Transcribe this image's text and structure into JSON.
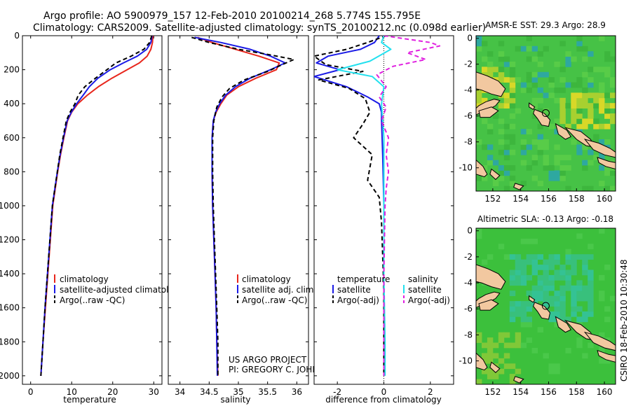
{
  "header": {
    "line1": "Argo profile: AO 5900979_157 12-Feb-2010 20100214_268 5.774S 155.795E",
    "line2": "Climatology: CARS2009. Satellite-adjusted climatology: synTS_20100212.nc (0.098d earlier)"
  },
  "side_label": "CSIRO 18-Feb-2010 10:30:48",
  "colors": {
    "climatology": "#e8261c",
    "satellite": "#1a1ae6",
    "argo": "#000000",
    "cyan": "#22e0ee",
    "magenta": "#e020e0",
    "land": "#f2c8a0",
    "sea_sst": "#46c246",
    "sea_sla": "#3cc03c"
  },
  "chart_data": [
    {
      "id": "temperature",
      "type": "line",
      "xlabel": "temperature",
      "ylabel": "",
      "xlim": [
        -2,
        32
      ],
      "ylim": [
        2050,
        0
      ],
      "xticks": [
        0,
        10,
        20,
        30
      ],
      "yticks": [
        0,
        200,
        400,
        600,
        800,
        1000,
        1200,
        1400,
        1600,
        1800,
        2000
      ],
      "legend": [
        "climatology",
        "satellite-adjusted climatology",
        "Argo(..raw -QC)"
      ],
      "series": [
        {
          "name": "climatology",
          "style": "solid",
          "color_key": "climatology",
          "points": [
            [
              29.8,
              0
            ],
            [
              29.7,
              40
            ],
            [
              29.3,
              80
            ],
            [
              28.4,
              120
            ],
            [
              26.5,
              160
            ],
            [
              23.5,
              200
            ],
            [
              19.8,
              250
            ],
            [
              16.5,
              300
            ],
            [
              13.8,
              350
            ],
            [
              11.5,
              400
            ],
            [
              10.0,
              450
            ],
            [
              9.0,
              500
            ],
            [
              8.1,
              600
            ],
            [
              7.3,
              700
            ],
            [
              6.6,
              800
            ],
            [
              6.0,
              900
            ],
            [
              5.4,
              1000
            ],
            [
              4.8,
              1200
            ],
            [
              4.2,
              1400
            ],
            [
              3.6,
              1600
            ],
            [
              3.0,
              1800
            ],
            [
              2.5,
              2000
            ]
          ]
        },
        {
          "name": "satellite-adjusted climatology",
          "style": "solid",
          "color_key": "satellite",
          "points": [
            [
              29.6,
              0
            ],
            [
              29.3,
              40
            ],
            [
              28.3,
              80
            ],
            [
              26.0,
              120
            ],
            [
              22.6,
              160
            ],
            [
              19.4,
              200
            ],
            [
              16.4,
              250
            ],
            [
              14.3,
              300
            ],
            [
              12.8,
              350
            ],
            [
              11.2,
              400
            ],
            [
              9.9,
              450
            ],
            [
              8.9,
              500
            ],
            [
              8.0,
              600
            ],
            [
              7.2,
              700
            ],
            [
              6.5,
              800
            ],
            [
              5.9,
              900
            ],
            [
              5.3,
              1000
            ],
            [
              4.7,
              1200
            ],
            [
              4.1,
              1400
            ],
            [
              3.5,
              1600
            ],
            [
              3.0,
              1800
            ],
            [
              2.5,
              2000
            ]
          ]
        },
        {
          "name": "Argo(..raw -QC)",
          "style": "dashed",
          "color_key": "argo",
          "points": [
            [
              29.5,
              0
            ],
            [
              29.0,
              40
            ],
            [
              27.6,
              80
            ],
            [
              24.5,
              120
            ],
            [
              20.8,
              160
            ],
            [
              18.6,
              200
            ],
            [
              15.8,
              250
            ],
            [
              13.2,
              300
            ],
            [
              11.6,
              350
            ],
            [
              10.8,
              400
            ],
            [
              9.6,
              450
            ],
            [
              8.7,
              500
            ],
            [
              7.9,
              600
            ],
            [
              7.1,
              700
            ],
            [
              6.5,
              800
            ],
            [
              5.9,
              900
            ],
            [
              5.3,
              1000
            ],
            [
              4.7,
              1200
            ],
            [
              4.1,
              1400
            ],
            [
              3.5,
              1600
            ],
            [
              3.0,
              1800
            ],
            [
              2.5,
              2000
            ]
          ]
        }
      ]
    },
    {
      "id": "salinity",
      "type": "line",
      "xlabel": "salinity",
      "ylabel": "",
      "xlim": [
        33.8,
        36.2
      ],
      "ylim": [
        2050,
        0
      ],
      "xticks": [
        34,
        34.5,
        35,
        35.5,
        36
      ],
      "yticks": [
        0,
        200,
        400,
        600,
        800,
        1000,
        1200,
        1400,
        1600,
        1800,
        2000
      ],
      "legend": [
        "climatology",
        "satellite adj. clim.",
        "Argo(..raw -QC)"
      ],
      "annotations": [
        "US ARGO PROJECT",
        "PI: GREGORY C. JOHNSON"
      ],
      "series": [
        {
          "name": "climatology",
          "style": "solid",
          "color_key": "climatology",
          "points": [
            [
              34.3,
              10
            ],
            [
              34.55,
              40
            ],
            [
              34.95,
              80
            ],
            [
              35.35,
              120
            ],
            [
              35.7,
              160
            ],
            [
              35.65,
              200
            ],
            [
              35.3,
              250
            ],
            [
              35.0,
              300
            ],
            [
              34.8,
              350
            ],
            [
              34.7,
              400
            ],
            [
              34.62,
              450
            ],
            [
              34.57,
              500
            ],
            [
              34.55,
              600
            ],
            [
              34.55,
              800
            ],
            [
              34.56,
              1000
            ],
            [
              34.58,
              1200
            ],
            [
              34.6,
              1400
            ],
            [
              34.62,
              1600
            ],
            [
              34.63,
              1800
            ],
            [
              34.65,
              2000
            ]
          ]
        },
        {
          "name": "satellite adj. clim.",
          "style": "solid",
          "color_key": "satellite",
          "points": [
            [
              34.25,
              10
            ],
            [
              34.7,
              40
            ],
            [
              35.2,
              80
            ],
            [
              35.55,
              120
            ],
            [
              35.8,
              160
            ],
            [
              35.55,
              200
            ],
            [
              35.2,
              250
            ],
            [
              34.95,
              300
            ],
            [
              34.78,
              350
            ],
            [
              34.68,
              400
            ],
            [
              34.61,
              450
            ],
            [
              34.57,
              500
            ],
            [
              34.55,
              600
            ],
            [
              34.55,
              800
            ],
            [
              34.56,
              1000
            ],
            [
              34.58,
              1200
            ],
            [
              34.6,
              1400
            ],
            [
              34.62,
              1600
            ],
            [
              34.63,
              1800
            ],
            [
              34.64,
              2000
            ]
          ]
        },
        {
          "name": "Argo(..raw -QC)",
          "style": "dashed",
          "color_key": "argo",
          "points": [
            [
              34.2,
              10
            ],
            [
              34.5,
              40
            ],
            [
              35.0,
              80
            ],
            [
              35.5,
              110
            ],
            [
              35.95,
              140
            ],
            [
              35.75,
              170
            ],
            [
              35.5,
              210
            ],
            [
              35.1,
              260
            ],
            [
              34.85,
              310
            ],
            [
              34.72,
              360
            ],
            [
              34.63,
              420
            ],
            [
              34.58,
              500
            ],
            [
              34.56,
              600
            ],
            [
              34.56,
              800
            ],
            [
              34.57,
              1000
            ],
            [
              34.59,
              1200
            ],
            [
              34.61,
              1400
            ],
            [
              34.63,
              1600
            ],
            [
              34.65,
              1800
            ],
            [
              34.65,
              2000
            ]
          ]
        }
      ]
    },
    {
      "id": "difference",
      "type": "line",
      "xlabel": "difference from climatology",
      "ylabel": "",
      "xlim": [
        -3.0,
        3.0
      ],
      "ylim": [
        2050,
        0
      ],
      "xticks": [
        -2,
        0,
        2
      ],
      "yticks": [
        0,
        200,
        400,
        600,
        800,
        1000,
        1200,
        1400,
        1600,
        1800,
        2000
      ],
      "legend": [
        "temperature",
        "satellite",
        "Argo(-adj)",
        "salinity",
        "satellite",
        "Argo(-adj)"
      ],
      "series": [
        {
          "name": "temperature satellite",
          "style": "solid",
          "color_key": "satellite",
          "points": [
            [
              -0.2,
              0
            ],
            [
              -0.4,
              40
            ],
            [
              -1.0,
              80
            ],
            [
              -2.4,
              120
            ],
            [
              -2.9,
              160
            ],
            [
              -1.9,
              200
            ],
            [
              -3.0,
              240
            ],
            [
              -1.6,
              300
            ],
            [
              -0.7,
              360
            ],
            [
              -0.2,
              400
            ],
            [
              -0.1,
              450
            ],
            [
              -0.1,
              500
            ],
            [
              -0.05,
              700
            ],
            [
              0,
              1000
            ],
            [
              0,
              1500
            ],
            [
              0,
              2000
            ]
          ]
        },
        {
          "name": "temperature Argo(-adj)",
          "style": "dashed",
          "color_key": "argo",
          "points": [
            [
              0.1,
              0
            ],
            [
              -0.7,
              40
            ],
            [
              -1.6,
              80
            ],
            [
              -3.0,
              120
            ],
            [
              -2.5,
              170
            ],
            [
              -0.9,
              210
            ],
            [
              -2.8,
              260
            ],
            [
              -1.5,
              310
            ],
            [
              -0.8,
              370
            ],
            [
              -0.6,
              450
            ],
            [
              -0.9,
              520
            ],
            [
              -1.3,
              600
            ],
            [
              -0.5,
              700
            ],
            [
              -0.7,
              850
            ],
            [
              -0.2,
              950
            ],
            [
              -0.1,
              1100
            ],
            [
              0,
              1500
            ],
            [
              0,
              2000
            ]
          ]
        },
        {
          "name": "salinity satellite",
          "style": "solid",
          "color_key": "cyan",
          "points": [
            [
              0.0,
              0
            ],
            [
              -0.1,
              40
            ],
            [
              0.3,
              80
            ],
            [
              -0.6,
              150
            ],
            [
              -2.0,
              200
            ],
            [
              -0.5,
              240
            ],
            [
              0.0,
              300
            ],
            [
              -0.1,
              400
            ],
            [
              0.0,
              600
            ],
            [
              0.0,
              1000
            ],
            [
              0.0,
              1400
            ],
            [
              0.05,
              1800
            ],
            [
              0.05,
              2000
            ]
          ]
        },
        {
          "name": "salinity Argo(-adj)",
          "style": "dashed",
          "color_key": "magenta",
          "points": [
            [
              0.0,
              0
            ],
            [
              2.0,
              40
            ],
            [
              2.4,
              60
            ],
            [
              1.0,
              100
            ],
            [
              1.8,
              140
            ],
            [
              0.4,
              180
            ],
            [
              -0.3,
              230
            ],
            [
              0.1,
              300
            ],
            [
              -0.2,
              360
            ],
            [
              0.1,
              420
            ],
            [
              -0.1,
              500
            ],
            [
              0.2,
              600
            ],
            [
              0.1,
              700
            ],
            [
              0.2,
              800
            ],
            [
              0.1,
              900
            ],
            [
              0.05,
              1000
            ],
            [
              0,
              1400
            ],
            [
              0,
              2000
            ]
          ]
        }
      ]
    },
    {
      "id": "sst_map",
      "type": "heatmap",
      "title": "AMSR-E SST: 29.3 Argo: 28.9",
      "xlim": [
        150.8,
        160.8
      ],
      "ylim": [
        -11.8,
        0.2
      ],
      "xticks": [
        152,
        154,
        156,
        158,
        160
      ],
      "yticks": [
        0,
        -2,
        -4,
        -6,
        -8,
        -10
      ],
      "marker": {
        "lon": 155.795,
        "lat": -5.774
      }
    },
    {
      "id": "sla_map",
      "type": "heatmap",
      "title": "Altimetric SLA: -0.13 Argo: -0.18",
      "xlim": [
        150.8,
        160.8
      ],
      "ylim": [
        -11.8,
        0.2
      ],
      "xticks": [
        152,
        154,
        156,
        158,
        160
      ],
      "yticks": [
        0,
        -2,
        -4,
        -6,
        -8,
        -10
      ],
      "marker": {
        "lon": 155.795,
        "lat": -5.774
      }
    }
  ]
}
